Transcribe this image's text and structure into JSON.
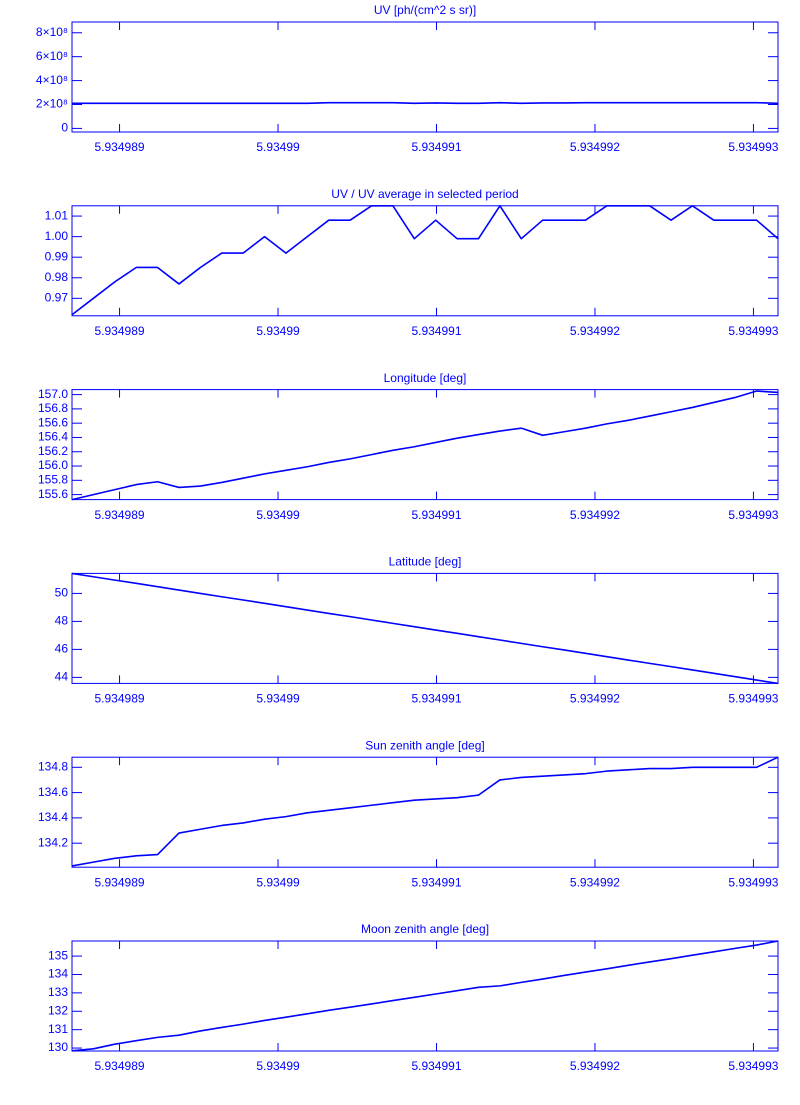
{
  "chart_data": [
    {
      "type": "line",
      "title": "UV [ph/(cm^2 s sr)]",
      "color": "#0000ff",
      "x": [
        5.9349887,
        5.934988835,
        5.93498897,
        5.934989105,
        5.93498924,
        5.934989375,
        5.93498951,
        5.934989645,
        5.93498978,
        5.934989915,
        5.93499005,
        5.934990185,
        5.93499032,
        5.934990455,
        5.93499059,
        5.934990725,
        5.93499086,
        5.934990995,
        5.93499113,
        5.934991265,
        5.9349914,
        5.934991535,
        5.93499167,
        5.934991805,
        5.93499194,
        5.934992075,
        5.93499221,
        5.934992345,
        5.93499248,
        5.934992615,
        5.93499275,
        5.934992885,
        5.93499302,
        5.934993155
      ],
      "values": [
        210000000,
        210000000,
        210000000,
        210000000,
        210000000,
        210000000,
        210000000,
        210000000,
        210000000,
        210000000,
        210000000,
        210000000,
        215000000,
        215000000,
        215000000,
        215000000,
        210000000,
        213000000,
        210000000,
        210000000,
        215000000,
        210000000,
        213000000,
        213000000,
        215000000,
        215000000,
        215000000,
        215000000,
        215000000,
        215000000,
        215000000,
        215000000,
        215000000,
        210000000
      ],
      "xlim": [
        5.9349887,
        5.934993155
      ],
      "xticks": [
        5.934989,
        5.93499,
        5.934991,
        5.934992,
        5.934993
      ],
      "ylim": [
        -30000000,
        890000000
      ],
      "yticks": [
        0,
        {
          "value": 200000000,
          "label": "2×10⁸"
        },
        {
          "value": 400000000,
          "label": "4×10⁸"
        },
        {
          "value": 600000000,
          "label": "6×10⁸"
        },
        {
          "value": 800000000,
          "label": "8×10⁸"
        }
      ]
    },
    {
      "type": "line",
      "title": "UV / UV average in selected period",
      "color": "#0000ff",
      "x": [
        5.9349887,
        5.934988835,
        5.93498897,
        5.934989105,
        5.93498924,
        5.934989375,
        5.93498951,
        5.934989645,
        5.93498978,
        5.934989915,
        5.93499005,
        5.934990185,
        5.93499032,
        5.934990455,
        5.93499059,
        5.934990725,
        5.93499086,
        5.934990995,
        5.93499113,
        5.934991265,
        5.9349914,
        5.934991535,
        5.93499167,
        5.934991805,
        5.93499194,
        5.934992075,
        5.93499221,
        5.934992345,
        5.93499248,
        5.934992615,
        5.93499275,
        5.934992885,
        5.93499302,
        5.934993155
      ],
      "values": [
        0.962,
        0.97,
        0.978,
        0.985,
        0.985,
        0.977,
        0.985,
        0.992,
        0.992,
        1.0,
        0.992,
        1.0,
        1.008,
        1.008,
        1.015,
        1.015,
        0.999,
        1.008,
        0.999,
        0.999,
        1.015,
        0.999,
        1.008,
        1.008,
        1.008,
        1.015,
        1.015,
        1.015,
        1.008,
        1.015,
        1.008,
        1.008,
        1.008,
        0.999
      ],
      "xlim": [
        5.9349887,
        5.934993155
      ],
      "xticks": [
        5.934989,
        5.93499,
        5.934991,
        5.934992,
        5.934993
      ],
      "ylim": [
        0.9615,
        1.015
      ],
      "yticks": [
        0.97,
        0.98,
        0.99,
        {
          "value": 1,
          "label": "1.00"
        },
        1.01
      ]
    },
    {
      "type": "line",
      "title": "Longitude [deg]",
      "color": "#0000ff",
      "x": [
        5.9349887,
        5.934988835,
        5.93498897,
        5.934989105,
        5.93498924,
        5.934989375,
        5.93498951,
        5.934989645,
        5.93498978,
        5.934989915,
        5.93499005,
        5.934990185,
        5.93499032,
        5.934990455,
        5.93499059,
        5.934990725,
        5.93499086,
        5.934990995,
        5.93499113,
        5.934991265,
        5.9349914,
        5.934991535,
        5.93499167,
        5.934991805,
        5.93499194,
        5.934992075,
        5.93499221,
        5.934992345,
        5.93499248,
        5.934992615,
        5.93499275,
        5.934992885,
        5.93499302,
        5.934993155
      ],
      "values": [
        155.53,
        155.6,
        155.67,
        155.74,
        155.78,
        155.7,
        155.72,
        155.77,
        155.83,
        155.89,
        155.94,
        155.99,
        156.05,
        156.1,
        156.16,
        156.22,
        156.27,
        156.33,
        156.39,
        156.44,
        156.49,
        156.53,
        156.43,
        156.48,
        156.53,
        156.59,
        156.64,
        156.7,
        156.76,
        156.82,
        156.89,
        156.96,
        157.05,
        157.03
      ],
      "xlim": [
        5.9349887,
        5.934993155
      ],
      "xticks": [
        5.934989,
        5.93499,
        5.934991,
        5.934992,
        5.934993
      ],
      "ylim": [
        155.53,
        157.07
      ],
      "yticks": [
        155.6,
        155.8,
        {
          "value": 156,
          "label": "156.0"
        },
        156.2,
        156.4,
        156.6,
        156.8,
        {
          "value": 157,
          "label": "157.0"
        }
      ]
    },
    {
      "type": "line",
      "title": "Latitude [deg]",
      "color": "#0000ff",
      "x": [
        5.9349887,
        5.934988835,
        5.93498897,
        5.934989105,
        5.93498924,
        5.934989375,
        5.93498951,
        5.934989645,
        5.93498978,
        5.934989915,
        5.93499005,
        5.934990185,
        5.93499032,
        5.934990455,
        5.93499059,
        5.934990725,
        5.93499086,
        5.934990995,
        5.93499113,
        5.934991265,
        5.9349914,
        5.934991535,
        5.93499167,
        5.934991805,
        5.93499194,
        5.934992075,
        5.93499221,
        5.934992345,
        5.93499248,
        5.934992615,
        5.93499275,
        5.934992885,
        5.93499302,
        5.934993155
      ],
      "values": [
        51.43,
        51.19,
        50.95,
        50.72,
        50.48,
        50.24,
        50.0,
        49.76,
        49.53,
        49.29,
        49.05,
        48.81,
        48.57,
        48.34,
        48.1,
        47.86,
        47.62,
        47.38,
        47.15,
        46.91,
        46.67,
        46.43,
        46.19,
        45.96,
        45.72,
        45.48,
        45.24,
        45.0,
        44.77,
        44.53,
        44.29,
        44.05,
        43.81,
        43.57
      ],
      "xlim": [
        5.9349887,
        5.934993155
      ],
      "xticks": [
        5.934989,
        5.93499,
        5.934991,
        5.934992,
        5.934993
      ],
      "ylim": [
        43.57,
        51.43
      ],
      "yticks": [
        44,
        46,
        48,
        50
      ]
    },
    {
      "type": "line",
      "title": "Sun zenith angle [deg]",
      "color": "#0000ff",
      "x": [
        5.9349887,
        5.934988835,
        5.93498897,
        5.934989105,
        5.93498924,
        5.934989375,
        5.93498951,
        5.934989645,
        5.93498978,
        5.934989915,
        5.93499005,
        5.934990185,
        5.93499032,
        5.934990455,
        5.93499059,
        5.934990725,
        5.93499086,
        5.934990995,
        5.93499113,
        5.934991265,
        5.9349914,
        5.934991535,
        5.93499167,
        5.934991805,
        5.93499194,
        5.934992075,
        5.93499221,
        5.934992345,
        5.93499248,
        5.934992615,
        5.93499275,
        5.934992885,
        5.93499302,
        5.934993155
      ],
      "values": [
        134.02,
        134.05,
        134.08,
        134.1,
        134.11,
        134.28,
        134.31,
        134.34,
        134.36,
        134.39,
        134.41,
        134.44,
        134.46,
        134.48,
        134.5,
        134.52,
        134.54,
        134.55,
        134.56,
        134.58,
        134.7,
        134.72,
        134.73,
        134.74,
        134.75,
        134.77,
        134.78,
        134.79,
        134.79,
        134.8,
        134.8,
        134.8,
        134.8,
        134.88
      ],
      "xlim": [
        5.9349887,
        5.934993155
      ],
      "xticks": [
        5.934989,
        5.93499,
        5.934991,
        5.934992,
        5.934993
      ],
      "ylim": [
        134.01,
        134.88
      ],
      "yticks": [
        134.2,
        134.4,
        134.6,
        134.8
      ]
    },
    {
      "type": "line",
      "title": "Moon zenith angle [deg]",
      "color": "#0000ff",
      "x": [
        5.9349887,
        5.934988835,
        5.93498897,
        5.934989105,
        5.93498924,
        5.934989375,
        5.93498951,
        5.934989645,
        5.93498978,
        5.934989915,
        5.93499005,
        5.934990185,
        5.93499032,
        5.934990455,
        5.93499059,
        5.934990725,
        5.93499086,
        5.934990995,
        5.93499113,
        5.934991265,
        5.9349914,
        5.934991535,
        5.93499167,
        5.934991805,
        5.93499194,
        5.934992075,
        5.93499221,
        5.934992345,
        5.93499248,
        5.934992615,
        5.93499275,
        5.934992885,
        5.93499302,
        5.934993155
      ],
      "values": [
        129.85,
        129.96,
        130.21,
        130.4,
        130.58,
        130.7,
        130.93,
        131.12,
        131.3,
        131.5,
        131.68,
        131.86,
        132.05,
        132.22,
        132.4,
        132.58,
        132.76,
        132.94,
        133.12,
        133.3,
        133.38,
        133.57,
        133.75,
        133.95,
        134.13,
        134.31,
        134.5,
        134.68,
        134.86,
        135.05,
        135.23,
        135.42,
        135.6,
        135.82
      ],
      "xlim": [
        5.9349887,
        5.934993155
      ],
      "xticks": [
        5.934989,
        5.93499,
        5.934991,
        5.934992,
        5.934993
      ],
      "ylim": [
        129.84,
        135.82
      ],
      "yticks": [
        130,
        131,
        132,
        133,
        134,
        135
      ]
    }
  ]
}
